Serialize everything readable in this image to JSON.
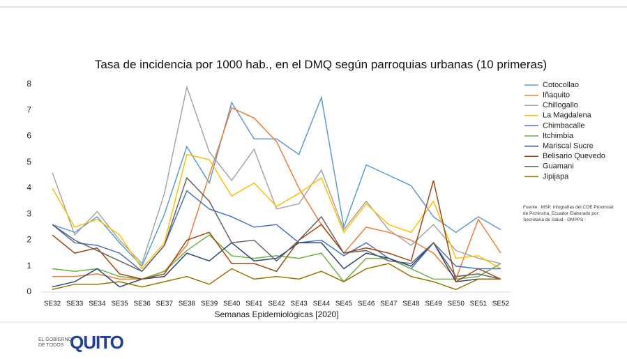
{
  "chart_data": {
    "type": "line",
    "title": "Tasa de incidencia por 1000 hab., en el DMQ según parroquias urbanas (10 primeras)",
    "x_label": "Semanas Epidemiológicas [2020]",
    "source_note": "Fuente : MSP, Infografías del COE Provincial de Pichincha, Ecuador Elaborado por: Secretaría de Salud - DMPPS",
    "categories": [
      "SE32",
      "SE33",
      "SE34",
      "SE35",
      "SE36",
      "SE37",
      "SE38",
      "SE39",
      "SE40",
      "SE41",
      "SE42",
      "SE43",
      "SE44",
      "SE45",
      "SE46",
      "SE47",
      "SE48",
      "SE49",
      "SE50",
      "SE51",
      "SE52"
    ],
    "ylim": [
      0,
      8
    ],
    "yticks": [
      0,
      1,
      2,
      3,
      4,
      5,
      6,
      7,
      8
    ],
    "grid": false,
    "legend": "right",
    "series": [
      {
        "name": "Cotocollao",
        "color": "#5b9bd5",
        "values": [
          2.6,
          2.3,
          2.9,
          1.9,
          1.0,
          3.0,
          5.6,
          4.2,
          7.3,
          5.9,
          5.9,
          5.3,
          7.5,
          2.5,
          4.9,
          4.5,
          4.1,
          2.9,
          2.3,
          2.9,
          2.4
        ]
      },
      {
        "name": "Iñaquito",
        "color": "#ed7d31",
        "values": [
          0.6,
          0.6,
          0.7,
          0.5,
          0.5,
          0.8,
          1.8,
          4.5,
          7.1,
          6.7,
          5.8,
          4.0,
          2.6,
          1.5,
          2.5,
          2.3,
          2.0,
          1.5,
          0.5,
          2.8,
          1.5
        ]
      },
      {
        "name": "Chillogallo",
        "color": "#a5a5a5",
        "values": [
          4.6,
          2.2,
          3.1,
          2.0,
          1.1,
          3.8,
          7.9,
          5.4,
          4.3,
          5.5,
          3.2,
          3.4,
          4.7,
          2.4,
          3.5,
          2.4,
          1.8,
          2.6,
          1.6,
          1.3,
          1.1
        ]
      },
      {
        "name": "La Magdalena",
        "color": "#ffc000",
        "values": [
          4.0,
          2.5,
          2.8,
          2.2,
          0.9,
          1.9,
          5.3,
          5.1,
          3.7,
          4.2,
          3.3,
          3.8,
          4.4,
          2.3,
          3.4,
          2.6,
          2.3,
          3.5,
          1.3,
          1.4,
          0.9
        ]
      },
      {
        "name": "Chimbacalle",
        "color": "#4472c4",
        "values": [
          2.6,
          1.9,
          1.8,
          1.5,
          0.8,
          1.8,
          3.9,
          3.2,
          2.9,
          2.5,
          2.6,
          1.9,
          2.0,
          1.4,
          1.9,
          1.3,
          0.9,
          1.9,
          1.0,
          0.9,
          0.9
        ]
      },
      {
        "name": "Itchimbia",
        "color": "#70ad47",
        "values": [
          0.9,
          0.8,
          0.9,
          0.6,
          0.5,
          0.8,
          1.6,
          2.2,
          1.4,
          1.3,
          1.4,
          1.3,
          1.5,
          0.4,
          1.3,
          1.3,
          0.9,
          0.5,
          0.5,
          0.6,
          1.1
        ]
      },
      {
        "name": "Mariscal Sucre",
        "color": "#264478",
        "values": [
          0.2,
          0.4,
          0.9,
          0.2,
          0.5,
          0.6,
          1.5,
          1.2,
          1.9,
          1.2,
          1.3,
          1.9,
          1.9,
          0.9,
          1.5,
          1.3,
          1.0,
          1.9,
          0.4,
          0.5,
          0.5
        ]
      },
      {
        "name": "Belisario Quevedo",
        "color": "#9e480e",
        "values": [
          2.2,
          1.5,
          1.7,
          0.7,
          0.5,
          0.7,
          2.0,
          2.3,
          1.1,
          1.1,
          0.8,
          2.0,
          2.6,
          1.5,
          1.7,
          1.5,
          1.2,
          4.3,
          0.4,
          0.9,
          0.5
        ]
      },
      {
        "name": "Guamani",
        "color": "#636363",
        "values": [
          2.6,
          2.0,
          1.6,
          1.2,
          0.8,
          1.8,
          4.4,
          3.5,
          1.9,
          2.0,
          1.2,
          2.0,
          2.9,
          1.5,
          1.6,
          1.2,
          1.1,
          1.9,
          0.6,
          0.7,
          0.5
        ]
      },
      {
        "name": "Jipijapa",
        "color": "#997300",
        "values": [
          0.1,
          0.3,
          0.3,
          0.4,
          0.2,
          0.4,
          0.6,
          0.3,
          0.9,
          0.5,
          0.6,
          0.5,
          0.8,
          0.4,
          0.9,
          1.1,
          0.6,
          0.4,
          0.1,
          0.5,
          0.5
        ]
      }
    ]
  },
  "logos": [
    "EL GOBIERNO DE TODOS",
    "QUITO"
  ]
}
